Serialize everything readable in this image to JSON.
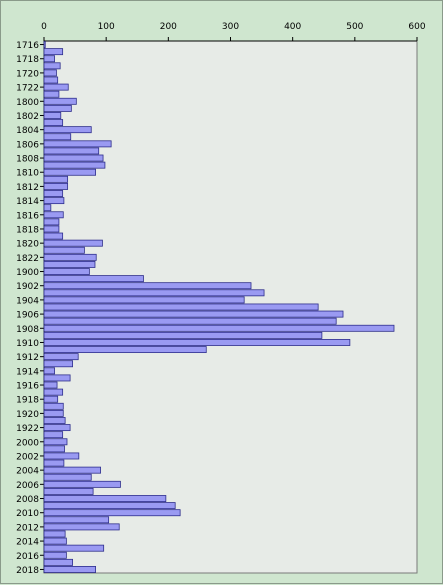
{
  "chart_data": {
    "type": "bar",
    "orientation": "horizontal",
    "title": "",
    "xlabel": "",
    "ylabel": "",
    "xlim": [
      0,
      600
    ],
    "x_ticks": [
      0,
      100,
      200,
      300,
      400,
      500,
      600
    ],
    "x_axis_position": "top",
    "grid": false,
    "legend": "none",
    "colors": {
      "bar_fill": "#9a9af2",
      "bar_stroke": "#2e2e8c",
      "plot_bg": "#e7ebe7",
      "page_bg": "#cfe6cf"
    },
    "categories": [
      "1716",
      "1717",
      "1718",
      "1719",
      "1720",
      "1721",
      "1722",
      "1723",
      "1800",
      "1801",
      "1802",
      "1803",
      "1804",
      "1805",
      "1806",
      "1807",
      "1808",
      "1809",
      "1810",
      "1811",
      "1812",
      "1813",
      "1814",
      "1815",
      "1816",
      "1817",
      "1818",
      "1819",
      "1820",
      "1821",
      "1822",
      "1823",
      "1900",
      "1901",
      "1902",
      "1903",
      "1904",
      "1905",
      "1906",
      "1907",
      "1908",
      "1909",
      "1910",
      "1911",
      "1912",
      "1913",
      "1914",
      "1915",
      "1916",
      "1917",
      "1918",
      "1919",
      "1920",
      "1921",
      "1922",
      "1923",
      "2000",
      "2001",
      "2002",
      "2003",
      "2004",
      "2005",
      "2006",
      "2007",
      "2008",
      "2009",
      "2010",
      "2011",
      "2012",
      "2013",
      "2014",
      "2015",
      "2016",
      "2017",
      "2018"
    ],
    "visible_category_labels": [
      "1716",
      "1718",
      "1720",
      "1722",
      "1800",
      "1802",
      "1804",
      "1806",
      "1808",
      "1810",
      "1812",
      "1814",
      "1816",
      "1818",
      "1820",
      "1822",
      "1900",
      "1902",
      "1904",
      "1906",
      "1908",
      "1910",
      "1912",
      "1914",
      "1916",
      "1918",
      "1920",
      "1922",
      "2000",
      "2002",
      "2004",
      "2006",
      "2008",
      "2010",
      "2012",
      "2014",
      "2016",
      "2018"
    ],
    "values": [
      2,
      30,
      17,
      26,
      20,
      22,
      39,
      24,
      52,
      44,
      27,
      30,
      76,
      43,
      108,
      88,
      95,
      98,
      83,
      38,
      38,
      30,
      32,
      11,
      31,
      24,
      24,
      30,
      94,
      65,
      84,
      82,
      73,
      160,
      333,
      354,
      322,
      441,
      481,
      470,
      563,
      447,
      492,
      261,
      55,
      46,
      17,
      42,
      21,
      30,
      22,
      31,
      31,
      34,
      42,
      30,
      37,
      33,
      56,
      32,
      91,
      76,
      123,
      79,
      196,
      211,
      219,
      104,
      121,
      34,
      36,
      96,
      36,
      46,
      83
    ]
  }
}
